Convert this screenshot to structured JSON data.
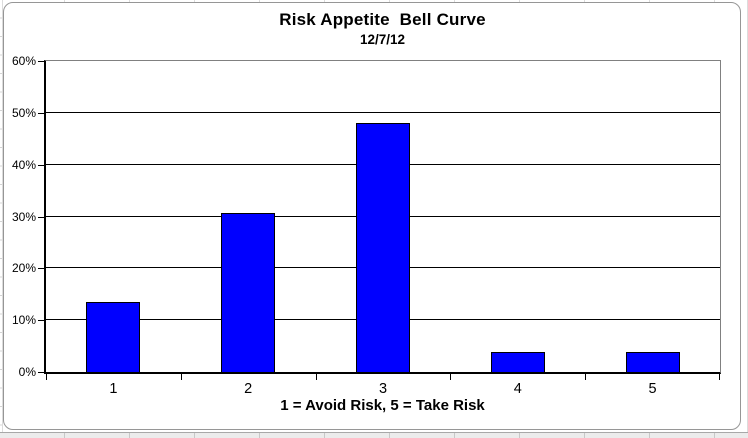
{
  "chart": {
    "object_role": "excel-embedded-chart"
  },
  "chart_data": {
    "type": "bar",
    "title": "Risk Appetite  Bell Curve",
    "subtitle": "12/7/12",
    "xlabel": "1 = Avoid Risk, 5 = Take Risk",
    "ylabel": "",
    "categories": [
      "1",
      "2",
      "3",
      "4",
      "5"
    ],
    "values": [
      13.46,
      30.77,
      48.08,
      3.85,
      3.85
    ],
    "series": [
      {
        "name": "Risk Appetite",
        "values": [
          13.46,
          30.77,
          48.08,
          3.85,
          3.85
        ]
      }
    ],
    "ylim": [
      0,
      60
    ],
    "ytick_step": 10,
    "ytick_labels": [
      "0%",
      "10%",
      "20%",
      "30%",
      "40%",
      "50%",
      "60%"
    ],
    "grid": true,
    "legend": "none",
    "bar_color": "#0000FF",
    "bar_border_color": "#000000",
    "gridline_color": "#000000",
    "plot_border_color": "#808080",
    "axis_color": "#000000"
  }
}
